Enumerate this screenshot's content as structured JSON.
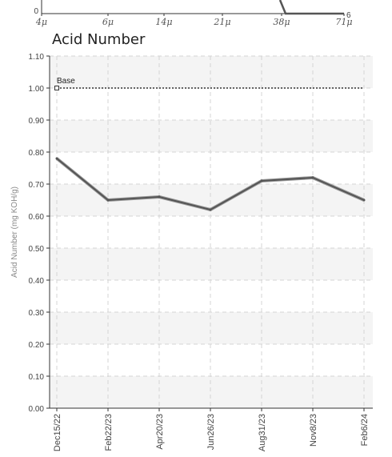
{
  "top_strip": {
    "ticks": [
      "4μ",
      "6μ",
      "14μ",
      "21μ",
      "38μ",
      "71μ"
    ],
    "y_left": "0",
    "y_right": "6"
  },
  "chart_data": {
    "type": "line",
    "title": "Acid Number",
    "xlabel": "",
    "ylabel": "Acid Number (mg KOH/g)",
    "categories": [
      "Dec15/22",
      "Feb22/23",
      "Apr20/23",
      "Jun26/23",
      "Aug31/23",
      "Nov8/23",
      "Feb6/24"
    ],
    "ylim": [
      0,
      1.1
    ],
    "yticks": [
      "0.00",
      "0.10",
      "0.20",
      "0.30",
      "0.40",
      "0.50",
      "0.60",
      "0.70",
      "0.80",
      "0.90",
      "1.00",
      "1.10"
    ],
    "grid": true,
    "series": [
      {
        "name": "",
        "values": [
          0.78,
          0.65,
          0.66,
          0.62,
          0.71,
          0.72,
          0.65
        ],
        "color": "#555555"
      },
      {
        "name": "Base",
        "values": [
          1.0,
          1.0,
          1.0,
          1.0,
          1.0,
          1.0,
          1.0
        ],
        "color": "#333333",
        "style": "dotted"
      }
    ],
    "annotations": [
      "Base"
    ]
  }
}
